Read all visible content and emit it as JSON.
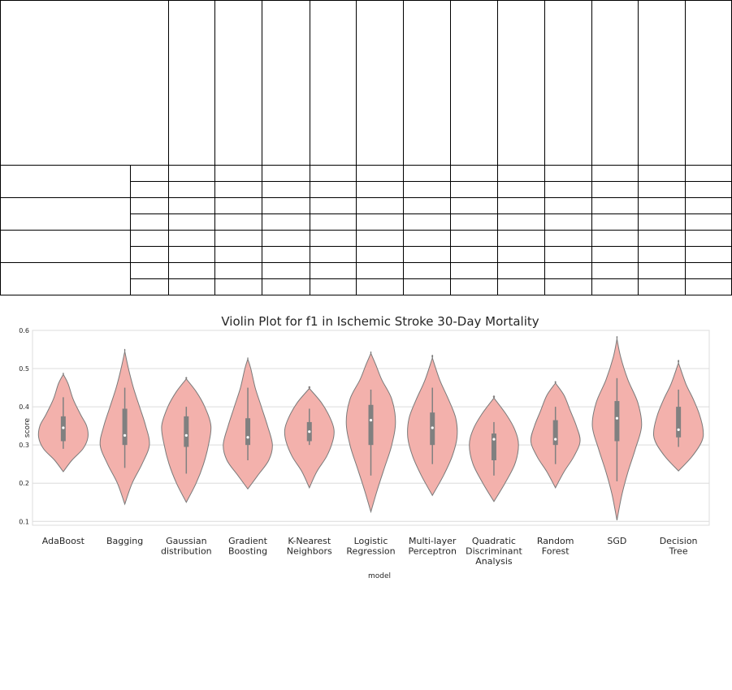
{
  "table": {
    "rows": 12,
    "cols": 14
  },
  "chart_data": {
    "type": "violin",
    "title": "Violin Plot for f1 in Ischemic Stroke 30-Day Mortality",
    "xlabel": "model",
    "ylabel": "score",
    "ylim": [
      0.09,
      0.6
    ],
    "yticks": [
      "0.1",
      "0.2",
      "0.3",
      "0.4",
      "0.5",
      "0.6"
    ],
    "grid": true,
    "colors": {
      "violin": "#f3b1ac",
      "edge": "#7a7a7a",
      "box": "#808080",
      "median": "#ffffff"
    },
    "categories": [
      [
        "AdaBoost"
      ],
      [
        "Bagging"
      ],
      [
        "Gaussian",
        "distribution"
      ],
      [
        "Gradient",
        "Boosting"
      ],
      [
        "K-Nearest",
        "Neighbors"
      ],
      [
        "Logistic",
        "Regression"
      ],
      [
        "Multi-layer",
        "Perceptron"
      ],
      [
        "Quadratic",
        "Discriminant",
        "Analysis"
      ],
      [
        "Random",
        "Forest"
      ],
      [
        "SGD"
      ],
      [
        "Decision",
        "Tree"
      ]
    ],
    "series": [
      {
        "min": 0.23,
        "max": 0.485,
        "wl": 0.29,
        "q1": 0.31,
        "median": 0.345,
        "q3": 0.375,
        "wh": 0.425,
        "shape": [
          [
            0.23,
            0
          ],
          [
            0.26,
            0.35
          ],
          [
            0.29,
            0.8
          ],
          [
            0.32,
            1
          ],
          [
            0.35,
            0.95
          ],
          [
            0.38,
            0.7
          ],
          [
            0.42,
            0.4
          ],
          [
            0.46,
            0.2
          ],
          [
            0.485,
            0
          ]
        ]
      },
      {
        "min": 0.145,
        "max": 0.545,
        "wl": 0.24,
        "q1": 0.3,
        "median": 0.325,
        "q3": 0.395,
        "wh": 0.45,
        "shape": [
          [
            0.145,
            0
          ],
          [
            0.2,
            0.3
          ],
          [
            0.25,
            0.7
          ],
          [
            0.3,
            1
          ],
          [
            0.35,
            0.85
          ],
          [
            0.4,
            0.6
          ],
          [
            0.45,
            0.35
          ],
          [
            0.5,
            0.15
          ],
          [
            0.545,
            0
          ]
        ]
      },
      {
        "min": 0.15,
        "max": 0.473,
        "wl": 0.225,
        "q1": 0.295,
        "median": 0.325,
        "q3": 0.375,
        "wh": 0.4,
        "shape": [
          [
            0.15,
            0
          ],
          [
            0.2,
            0.4
          ],
          [
            0.25,
            0.7
          ],
          [
            0.3,
            0.9
          ],
          [
            0.35,
            1
          ],
          [
            0.4,
            0.75
          ],
          [
            0.44,
            0.4
          ],
          [
            0.473,
            0
          ]
        ]
      },
      {
        "min": 0.185,
        "max": 0.525,
        "wl": 0.26,
        "q1": 0.3,
        "median": 0.32,
        "q3": 0.37,
        "wh": 0.45,
        "shape": [
          [
            0.185,
            0
          ],
          [
            0.22,
            0.4
          ],
          [
            0.26,
            0.85
          ],
          [
            0.3,
            1
          ],
          [
            0.35,
            0.8
          ],
          [
            0.4,
            0.55
          ],
          [
            0.45,
            0.3
          ],
          [
            0.5,
            0.12
          ],
          [
            0.525,
            0
          ]
        ]
      },
      {
        "min": 0.188,
        "max": 0.448,
        "wl": 0.3,
        "q1": 0.31,
        "median": 0.335,
        "q3": 0.36,
        "wh": 0.395,
        "shape": [
          [
            0.188,
            0
          ],
          [
            0.23,
            0.3
          ],
          [
            0.27,
            0.7
          ],
          [
            0.31,
            0.95
          ],
          [
            0.34,
            1
          ],
          [
            0.37,
            0.85
          ],
          [
            0.41,
            0.5
          ],
          [
            0.448,
            0
          ]
        ]
      },
      {
        "min": 0.125,
        "max": 0.54,
        "wl": 0.22,
        "q1": 0.3,
        "median": 0.365,
        "q3": 0.405,
        "wh": 0.445,
        "shape": [
          [
            0.125,
            0
          ],
          [
            0.18,
            0.25
          ],
          [
            0.24,
            0.55
          ],
          [
            0.3,
            0.85
          ],
          [
            0.36,
            1
          ],
          [
            0.42,
            0.85
          ],
          [
            0.47,
            0.45
          ],
          [
            0.51,
            0.2
          ],
          [
            0.54,
            0
          ]
        ]
      },
      {
        "min": 0.168,
        "max": 0.528,
        "wl": 0.25,
        "q1": 0.3,
        "median": 0.345,
        "q3": 0.385,
        "wh": 0.45,
        "shape": [
          [
            0.168,
            0
          ],
          [
            0.22,
            0.45
          ],
          [
            0.27,
            0.8
          ],
          [
            0.32,
            1
          ],
          [
            0.37,
            0.95
          ],
          [
            0.42,
            0.65
          ],
          [
            0.47,
            0.3
          ],
          [
            0.528,
            0
          ]
        ]
      },
      {
        "min": 0.152,
        "max": 0.423,
        "wl": 0.22,
        "q1": 0.26,
        "median": 0.315,
        "q3": 0.33,
        "wh": 0.36,
        "shape": [
          [
            0.152,
            0
          ],
          [
            0.2,
            0.45
          ],
          [
            0.25,
            0.85
          ],
          [
            0.3,
            1
          ],
          [
            0.34,
            0.85
          ],
          [
            0.38,
            0.5
          ],
          [
            0.423,
            0
          ]
        ]
      },
      {
        "min": 0.188,
        "max": 0.462,
        "wl": 0.25,
        "q1": 0.3,
        "median": 0.315,
        "q3": 0.365,
        "wh": 0.4,
        "shape": [
          [
            0.188,
            0
          ],
          [
            0.23,
            0.35
          ],
          [
            0.27,
            0.75
          ],
          [
            0.31,
            1
          ],
          [
            0.35,
            0.85
          ],
          [
            0.39,
            0.6
          ],
          [
            0.43,
            0.35
          ],
          [
            0.462,
            0
          ]
        ]
      },
      {
        "min": 0.103,
        "max": 0.578,
        "wl": 0.205,
        "q1": 0.31,
        "median": 0.37,
        "q3": 0.415,
        "wh": 0.475,
        "shape": [
          [
            0.103,
            0
          ],
          [
            0.17,
            0.2
          ],
          [
            0.23,
            0.45
          ],
          [
            0.29,
            0.75
          ],
          [
            0.35,
            1
          ],
          [
            0.41,
            0.85
          ],
          [
            0.47,
            0.45
          ],
          [
            0.53,
            0.15
          ],
          [
            0.578,
            0
          ]
        ]
      },
      {
        "min": 0.232,
        "max": 0.515,
        "wl": 0.295,
        "q1": 0.32,
        "median": 0.34,
        "q3": 0.4,
        "wh": 0.445,
        "shape": [
          [
            0.232,
            0
          ],
          [
            0.27,
            0.55
          ],
          [
            0.31,
            0.95
          ],
          [
            0.34,
            1
          ],
          [
            0.38,
            0.85
          ],
          [
            0.42,
            0.6
          ],
          [
            0.46,
            0.3
          ],
          [
            0.515,
            0
          ]
        ]
      }
    ]
  }
}
